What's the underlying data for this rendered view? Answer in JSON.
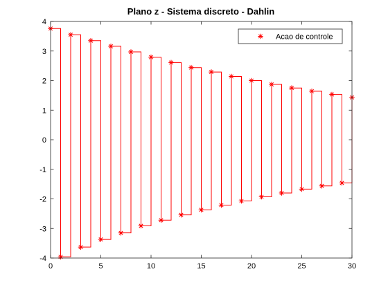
{
  "chart_data": {
    "type": "line",
    "title": "Plano z - Sistema discreto - Dahlin",
    "xlabel": "",
    "ylabel": "",
    "xlim": [
      0,
      30
    ],
    "ylim": [
      -4,
      4
    ],
    "xticks": [
      0,
      5,
      10,
      15,
      20,
      25,
      30
    ],
    "yticks": [
      -4,
      -3,
      -2,
      -1,
      0,
      1,
      2,
      3,
      4
    ],
    "grid": false,
    "legend_position": "top-right",
    "series": [
      {
        "name": "Acao de controle",
        "color": "#ff0000",
        "marker": "asterisk",
        "step": true,
        "x": [
          0,
          1,
          2,
          3,
          4,
          5,
          6,
          7,
          8,
          9,
          10,
          11,
          12,
          13,
          14,
          15,
          16,
          17,
          18,
          19,
          20,
          21,
          22,
          23,
          24,
          25,
          26,
          27,
          28,
          29,
          30
        ],
        "values": [
          3.76,
          -3.96,
          3.55,
          -3.63,
          3.35,
          -3.37,
          3.16,
          -3.15,
          2.97,
          -2.91,
          2.79,
          -2.72,
          2.61,
          -2.54,
          2.44,
          -2.37,
          2.29,
          -2.21,
          2.14,
          -2.07,
          2.0,
          -1.93,
          1.87,
          -1.8,
          1.75,
          -1.67,
          1.64,
          -1.56,
          1.53,
          -1.46,
          1.43
        ]
      }
    ]
  }
}
